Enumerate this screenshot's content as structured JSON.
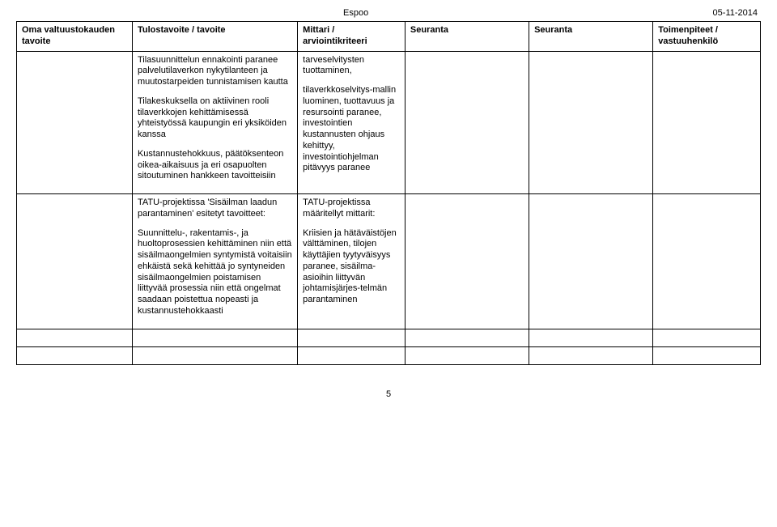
{
  "header": {
    "city": "Espoo",
    "date": "05-11-2014"
  },
  "columns": {
    "c1": "Oma valtuustokauden tavoite",
    "c2": "Tulostavoite / tavoite",
    "c3": "Mittari / arviointikriteeri",
    "c4": "Seuranta",
    "c5": "Seuranta",
    "c6": "Toimenpiteet / vastuuhenkilö"
  },
  "row1": {
    "c2p1": "Tilasuunnittelun ennakointi paranee palvelutilaverkon nykytilanteen ja muutostarpeiden tunnistamisen kautta",
    "c2p2": "Tilakeskuksella on aktiivinen rooli tilaverkkojen kehittämisessä yhteistyössä kaupungin eri yksiköiden kanssa",
    "c2p3": "Kustannustehokkuus, päätöksenteon oikea-aikaisuus ja eri osapuolten sitoutuminen hankkeen tavoitteisiin",
    "c3p1": "tarveselvitysten tuottaminen,",
    "c3p2": "tilaverkkoselvitys-mallin luominen, tuottavuus ja resursointi paranee, investointien kustannusten ohjaus kehittyy, investointiohjelman pitävyys paranee"
  },
  "row2": {
    "c2p1": "TATU-projektissa 'Sisäilman laadun parantaminen' esitetyt tavoitteet:",
    "c2p2": "Suunnittelu-, rakentamis-, ja huoltoprosessien kehittäminen niin että sisäilmaongelmien syntymistä voitaisiin ehkäistä sekä kehittää jo syntyneiden sisäilmaongelmien poistamisen liittyvää prosessia niin että ongelmat saadaan poistettua nopeasti ja kustannustehokkaasti",
    "c3p1": "TATU-projektissa määritellyt mittarit:",
    "c3p2": "Kriisien ja hätäväistöjen välttäminen, tilojen käyttäjien tyytyväisyys paranee, sisäilma-asioihin liittyvän johtamisjärjes-telmän parantaminen"
  },
  "pageNumber": "5"
}
